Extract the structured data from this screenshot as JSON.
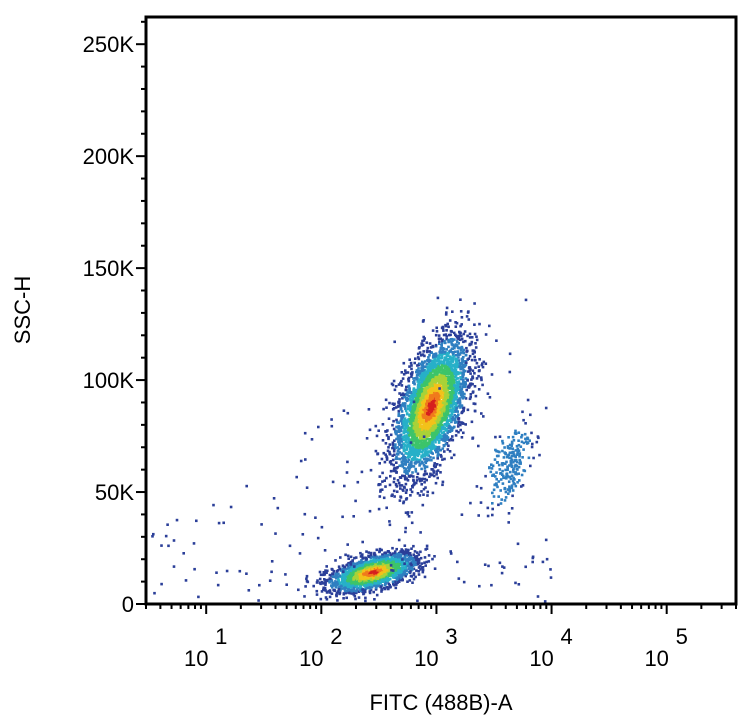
{
  "chart_data": {
    "type": "scatter",
    "subtype": "density-dot-plot",
    "title": "",
    "xlabel": "FITC (488B)-A",
    "ylabel": "SSC-H",
    "x_scale": "log",
    "xlim": [
      3,
      400000
    ],
    "ylim": [
      0,
      262144
    ],
    "x_tick_labels": [
      {
        "base": "10",
        "exp": "1",
        "value": 10
      },
      {
        "base": "10",
        "exp": "2",
        "value": 100
      },
      {
        "base": "10",
        "exp": "3",
        "value": 1000
      },
      {
        "base": "10",
        "exp": "4",
        "value": 10000
      },
      {
        "base": "10",
        "exp": "5",
        "value": 100000
      }
    ],
    "y_tick_labels": [
      {
        "label": "0",
        "value": 0
      },
      {
        "label": "50K",
        "value": 50000
      },
      {
        "label": "100K",
        "value": 100000
      },
      {
        "label": "150K",
        "value": 150000
      },
      {
        "label": "200K",
        "value": 200000
      },
      {
        "label": "250K",
        "value": 250000
      }
    ],
    "grid": false,
    "legend": "none",
    "density_colors": [
      "#2b3f99",
      "#2f7fc1",
      "#27b0c8",
      "#3cc46a",
      "#a8d238",
      "#f2c21a",
      "#f07a1c",
      "#d6201e"
    ],
    "populations": [
      {
        "name": "",
        "center_x": 900,
        "center_y": 88000,
        "spread_log_x": 0.16,
        "spread_y": 15000,
        "count": 3400
      },
      {
        "name": "",
        "center_x": 280,
        "center_y": 14000,
        "spread_log_x": 0.19,
        "spread_y": 4200,
        "count": 1900
      },
      {
        "name": "",
        "center_x": 4200,
        "center_y": 62000,
        "spread_log_x": 0.1,
        "spread_y": 9000,
        "count": 220
      }
    ]
  }
}
